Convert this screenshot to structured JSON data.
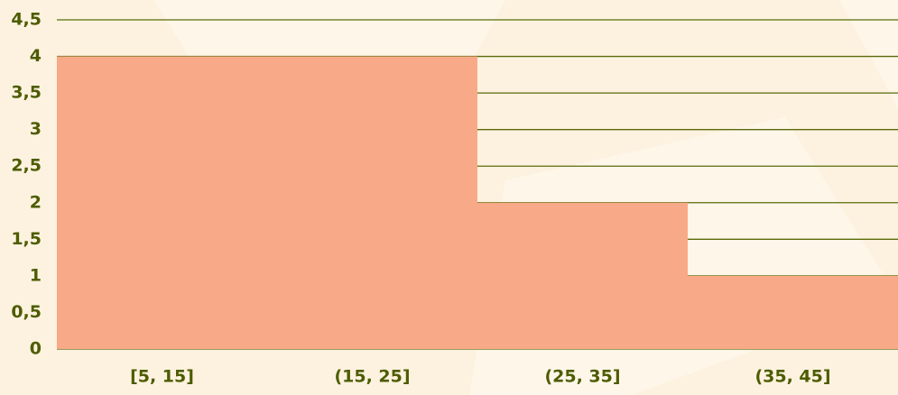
{
  "chart_data": {
    "type": "bar",
    "categories": [
      "[5, 15]",
      "(15, 25]",
      "(25, 35]",
      "(35, 45]"
    ],
    "values": [
      4,
      4,
      2,
      1
    ],
    "color": "#f8a987",
    "ylim": [
      0,
      4.5
    ],
    "yticks": [
      0,
      {
        "value": 0.5,
        "label": "0,5"
      },
      1,
      {
        "value": 1.5,
        "label": "1,5"
      },
      2,
      {
        "value": 2.5,
        "label": "2,5"
      },
      3,
      {
        "value": 3.5,
        "label": "3,5"
      },
      4,
      {
        "value": 4.5,
        "label": "4,5"
      }
    ],
    "grid": true
  }
}
